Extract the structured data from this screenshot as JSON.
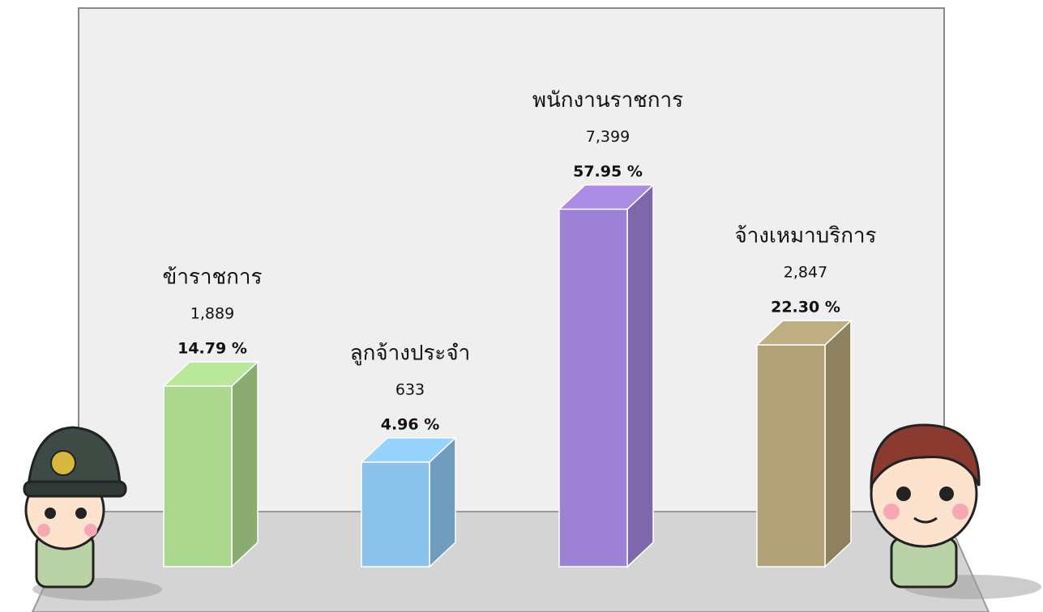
{
  "chart_data": {
    "type": "bar3d",
    "categories": [
      "ข้าราชการ",
      "ลูกจ้างประจำ",
      "พนักงานราชการ",
      "จ้างเหมาบริการ"
    ],
    "counts": [
      1889,
      633,
      7399,
      2847
    ],
    "count_labels": [
      "1,889",
      "633",
      "7,399",
      "2,847"
    ],
    "values": [
      14.79,
      4.96,
      57.95,
      22.3
    ],
    "value_labels": [
      "14.79 %",
      "4.96 %",
      "57.95 %",
      "22.30 %"
    ],
    "colors": [
      "#acd78f",
      "#8cc3ed",
      "#9d81d5",
      "#b0a177"
    ]
  }
}
